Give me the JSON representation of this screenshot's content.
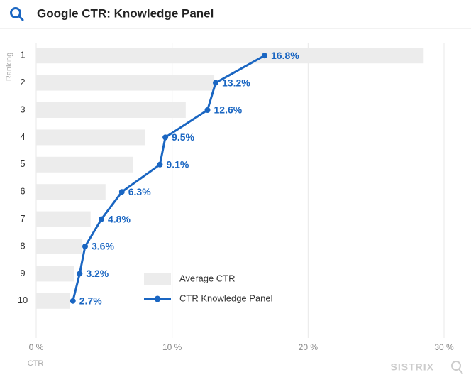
{
  "chart_data": {
    "type": "bar",
    "orientation": "horizontal",
    "title": "Google CTR: Knowledge Panel",
    "y_label": "Ranking",
    "x_label": "CTR",
    "watermark": "SISTRIX",
    "categories": [
      "1",
      "2",
      "3",
      "4",
      "5",
      "6",
      "7",
      "8",
      "9",
      "10"
    ],
    "series": [
      {
        "name": "Average CTR",
        "type": "bar",
        "color": "#ececec",
        "values": [
          28.5,
          13.1,
          11.0,
          8.0,
          7.1,
          5.1,
          4.0,
          3.4,
          2.8,
          2.5
        ]
      },
      {
        "name": "CTR Knowledge Panel",
        "type": "line",
        "color": "#1a66c2",
        "values": [
          16.8,
          13.2,
          12.6,
          9.5,
          9.1,
          6.3,
          4.8,
          3.6,
          3.2,
          2.7
        ],
        "value_labels": [
          "16.8%",
          "13.2%",
          "12.6%",
          "9.5%",
          "9.1%",
          "6.3%",
          "4.8%",
          "3.6%",
          "3.2%",
          "2.7%"
        ]
      }
    ],
    "xlim": [
      0,
      30
    ],
    "xticks": [
      {
        "value": 0,
        "label": "0 %"
      },
      {
        "value": 10,
        "label": "10 %"
      },
      {
        "value": 20,
        "label": "20 %"
      },
      {
        "value": 30,
        "label": "30 %"
      }
    ],
    "grid": true,
    "legend": "inside"
  }
}
